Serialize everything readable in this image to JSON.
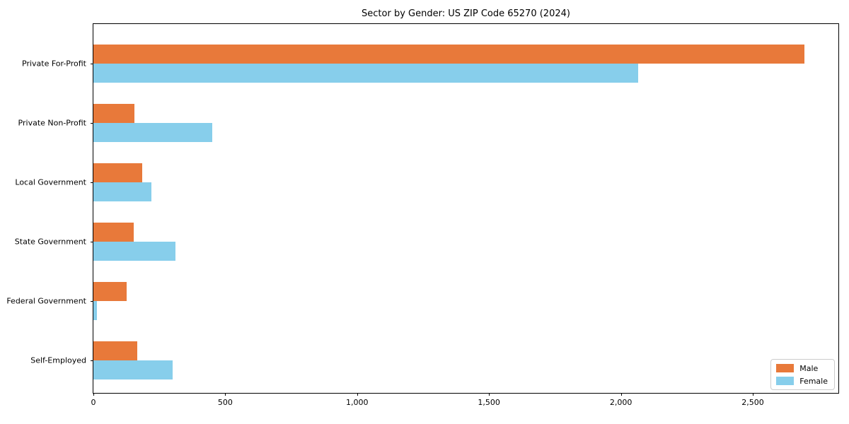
{
  "figure": {
    "background": "#ffffff",
    "axes_edge_color": "#000000"
  },
  "chart_data": {
    "type": "bar",
    "orientation": "horizontal",
    "title": "Sector by Gender: US ZIP Code 65270 (2024)",
    "xlabel": "",
    "ylabel": "",
    "categories": [
      "Private For-Profit",
      "Private Non-Profit",
      "Local Government",
      "State Government",
      "Federal Government",
      "Self-Employed"
    ],
    "series": [
      {
        "name": "Male",
        "color": "#e8793a",
        "values": [
          2695,
          155,
          185,
          152,
          125,
          167
        ]
      },
      {
        "name": "Female",
        "color": "#87ceeb",
        "values": [
          2065,
          450,
          220,
          310,
          13,
          300
        ]
      }
    ],
    "x_ticks": [
      0,
      500,
      1000,
      1500,
      2000,
      2500
    ],
    "x_tick_labels": [
      "0",
      "500",
      "1,000",
      "1,500",
      "2,000",
      "2,500"
    ],
    "xlim": [
      0,
      2830
    ],
    "grid": false,
    "legend": {
      "position": "lower right",
      "entries": [
        {
          "label": "Male",
          "color": "#e8793a"
        },
        {
          "label": "Female",
          "color": "#87ceeb"
        }
      ]
    }
  }
}
